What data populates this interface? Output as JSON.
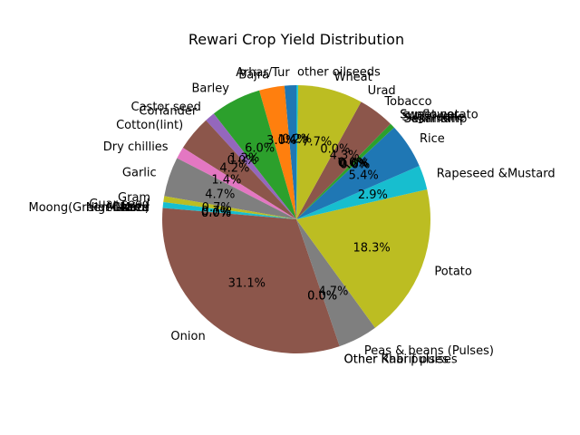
{
  "chart_data": {
    "type": "pie",
    "title": "Rewari Crop Yield Distribution",
    "start_angle_deg": 90,
    "direction": "counterclockwise",
    "slices": [
      {
        "label": "Arhar/Tur",
        "value": 1.4,
        "pct_label": "1.4%",
        "color": "#1f77b4"
      },
      {
        "label": "Bajra",
        "value": 3.0,
        "pct_label": "3.0%",
        "color": "#ff7f0e"
      },
      {
        "label": "Barley",
        "value": 6.0,
        "pct_label": "6.0%",
        "color": "#2ca02c"
      },
      {
        "label": "Castor seed",
        "value": 1.2,
        "pct_label": "1.2%",
        "color": "#9467bd"
      },
      {
        "label": "Coriander",
        "value": 0.0,
        "pct_label": "0.0%",
        "color": "#9467bd"
      },
      {
        "label": "Cotton(lint)",
        "value": 4.2,
        "pct_label": "4.2%",
        "color": "#8c564b"
      },
      {
        "label": "Dry chillies",
        "value": 1.4,
        "pct_label": "1.4%",
        "color": "#e377c2"
      },
      {
        "label": "Garlic",
        "value": 4.7,
        "pct_label": "4.7%",
        "color": "#7f7f7f"
      },
      {
        "label": "Gram",
        "value": 0.7,
        "pct_label": "0.7%",
        "color": "#bcbd22"
      },
      {
        "label": "Guar seed",
        "value": 0.7,
        "pct_label": "0.7%",
        "color": "#17becf"
      },
      {
        "label": "Maize",
        "value": 0.0,
        "pct_label": "0.0%",
        "color": "#1f77b4"
      },
      {
        "label": "Moong(Green Gram)",
        "value": 0.0,
        "pct_label": "0.0%",
        "color": "#ff7f0e"
      },
      {
        "label": "Moth",
        "value": 0.0,
        "pct_label": "0.0%",
        "color": "#2ca02c"
      },
      {
        "label": "Masoor",
        "value": 0.0,
        "pct_label": "0.0%",
        "color": "#d62728"
      },
      {
        "label": "Niger seed",
        "value": 0.0,
        "pct_label": "0.0%",
        "color": "#9467bd"
      },
      {
        "label": "Onion",
        "value": 31.1,
        "pct_label": "31.1%",
        "color": "#8c564b"
      },
      {
        "label": "Other Rabi pulses",
        "value": 0.0,
        "pct_label": "0.0%",
        "color": "#e377c2"
      },
      {
        "label": "Other Kharif pulses",
        "value": 0.0,
        "pct_label": "0.0%",
        "color": "#e377c2"
      },
      {
        "label": "Peas & beans (Pulses)",
        "value": 4.7,
        "pct_label": "4.7%",
        "color": "#7f7f7f"
      },
      {
        "label": "Potato",
        "value": 18.3,
        "pct_label": "18.3%",
        "color": "#bcbd22"
      },
      {
        "label": "Rapeseed &Mustard",
        "value": 2.9,
        "pct_label": "2.9%",
        "color": "#17becf"
      },
      {
        "label": "Rice",
        "value": 5.4,
        "pct_label": "5.4%",
        "color": "#1f77b4"
      },
      {
        "label": "Sannhamp",
        "value": 0.0,
        "pct_label": "0.0%",
        "color": "#ff7f0e"
      },
      {
        "label": "Sesamum",
        "value": 0.0,
        "pct_label": "0.0%",
        "color": "#2ca02c"
      },
      {
        "label": "Sugarcane",
        "value": 0.6,
        "pct_label": "0.6%",
        "color": "#2ca02c"
      },
      {
        "label": "Sunflower",
        "value": 0.0,
        "pct_label": "0.0%",
        "color": "#d62728"
      },
      {
        "label": "Sweet potato",
        "value": 0.0,
        "pct_label": "0.0%",
        "color": "#9467bd"
      },
      {
        "label": "Tobacco",
        "value": 4.3,
        "pct_label": "4.3%",
        "color": "#8c564b"
      },
      {
        "label": "Urad",
        "value": 0.0,
        "pct_label": "0.0%",
        "color": "#e377c2"
      },
      {
        "label": "Wheat",
        "value": 7.7,
        "pct_label": "7.7%",
        "color": "#bcbd22"
      },
      {
        "label": "other oilseeds",
        "value": 0.2,
        "pct_label": "0.2%",
        "color": "#17becf"
      }
    ]
  }
}
